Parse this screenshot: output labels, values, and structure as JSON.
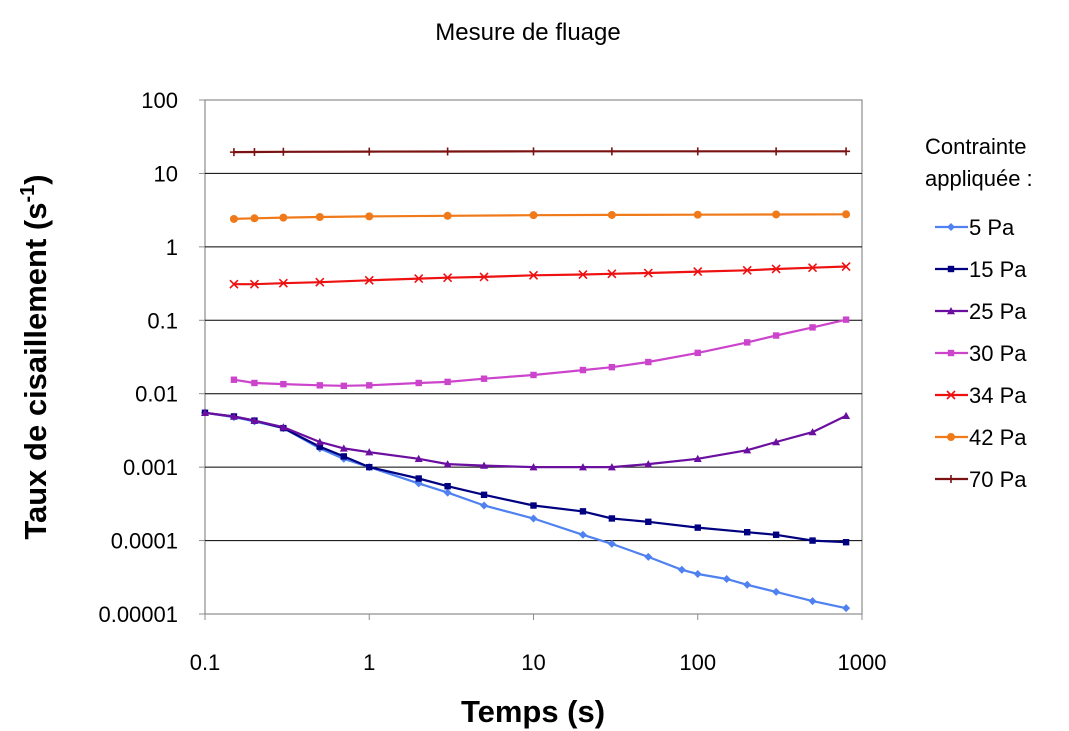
{
  "chart_data": {
    "type": "line",
    "title": "Mesure de fluage",
    "xlabel": "Temps (s)",
    "ylabel_main": "Taux de cisaillement (s",
    "ylabel_sup": "-1",
    "ylabel_close": ")",
    "xscale": "log",
    "yscale": "log",
    "xlim": [
      0.1,
      1000
    ],
    "ylim": [
      1e-05,
      100
    ],
    "x_ticks": [
      0.1,
      1,
      10,
      100,
      1000
    ],
    "x_tick_labels": [
      "0.1",
      "1",
      "10",
      "100",
      "1000"
    ],
    "y_ticks": [
      1e-05,
      0.0001,
      0.001,
      0.01,
      0.1,
      1,
      10,
      100
    ],
    "y_tick_labels": [
      "0.00001",
      "0.0001",
      "0.001",
      "0.01",
      "0.1",
      "1",
      "10",
      "100"
    ],
    "grid": "horizontal",
    "legend_position": "right",
    "legend_title_lines": [
      "Contrainte",
      "appliquée :"
    ],
    "series": [
      {
        "name": "5 Pa",
        "color": "#4f81f0",
        "marker": "diamond",
        "points": [
          [
            0.1,
            0.0055
          ],
          [
            0.15,
            0.0048
          ],
          [
            0.2,
            0.0042
          ],
          [
            0.3,
            0.0034
          ],
          [
            0.5,
            0.0018
          ],
          [
            0.7,
            0.0013
          ],
          [
            1,
            0.001
          ],
          [
            2,
            0.0006
          ],
          [
            3,
            0.00045
          ],
          [
            5,
            0.0003
          ],
          [
            10,
            0.0002
          ],
          [
            20,
            0.00012
          ],
          [
            30,
            9e-05
          ],
          [
            50,
            6e-05
          ],
          [
            80,
            4e-05
          ],
          [
            100,
            3.5e-05
          ],
          [
            150,
            3e-05
          ],
          [
            200,
            2.5e-05
          ],
          [
            300,
            2e-05
          ],
          [
            500,
            1.5e-05
          ],
          [
            800,
            1.2e-05
          ]
        ]
      },
      {
        "name": "15 Pa",
        "color": "#000080",
        "marker": "square",
        "points": [
          [
            0.1,
            0.0055
          ],
          [
            0.15,
            0.0049
          ],
          [
            0.2,
            0.0043
          ],
          [
            0.3,
            0.0034
          ],
          [
            0.5,
            0.0019
          ],
          [
            0.7,
            0.0014
          ],
          [
            1,
            0.001
          ],
          [
            2,
            0.0007
          ],
          [
            3,
            0.00055
          ],
          [
            5,
            0.00042
          ],
          [
            10,
            0.0003
          ],
          [
            20,
            0.00025
          ],
          [
            30,
            0.0002
          ],
          [
            50,
            0.00018
          ],
          [
            100,
            0.00015
          ],
          [
            200,
            0.00013
          ],
          [
            300,
            0.00012
          ],
          [
            500,
            0.0001
          ],
          [
            800,
            9.5e-05
          ]
        ]
      },
      {
        "name": "25 Pa",
        "color": "#6b0fa0",
        "marker": "triangle",
        "points": [
          [
            0.1,
            0.0055
          ],
          [
            0.15,
            0.0049
          ],
          [
            0.2,
            0.0043
          ],
          [
            0.3,
            0.0035
          ],
          [
            0.5,
            0.0022
          ],
          [
            0.7,
            0.0018
          ],
          [
            1,
            0.0016
          ],
          [
            2,
            0.0013
          ],
          [
            3,
            0.0011
          ],
          [
            5,
            0.00105
          ],
          [
            10,
            0.001
          ],
          [
            20,
            0.001
          ],
          [
            30,
            0.001
          ],
          [
            50,
            0.0011
          ],
          [
            100,
            0.0013
          ],
          [
            200,
            0.0017
          ],
          [
            300,
            0.0022
          ],
          [
            500,
            0.003
          ],
          [
            800,
            0.005
          ]
        ]
      },
      {
        "name": "30 Pa",
        "color": "#cc44cc",
        "marker": "square",
        "points": [
          [
            0.15,
            0.0155
          ],
          [
            0.2,
            0.014
          ],
          [
            0.3,
            0.0135
          ],
          [
            0.5,
            0.013
          ],
          [
            0.7,
            0.0128
          ],
          [
            1,
            0.013
          ],
          [
            2,
            0.014
          ],
          [
            3,
            0.0145
          ],
          [
            5,
            0.016
          ],
          [
            10,
            0.018
          ],
          [
            20,
            0.021
          ],
          [
            30,
            0.023
          ],
          [
            50,
            0.027
          ],
          [
            100,
            0.036
          ],
          [
            200,
            0.05
          ],
          [
            300,
            0.062
          ],
          [
            500,
            0.08
          ],
          [
            800,
            0.102
          ]
        ]
      },
      {
        "name": "34 Pa",
        "color": "#ee1111",
        "marker": "x",
        "points": [
          [
            0.15,
            0.31
          ],
          [
            0.2,
            0.31
          ],
          [
            0.3,
            0.32
          ],
          [
            0.5,
            0.33
          ],
          [
            1,
            0.35
          ],
          [
            2,
            0.37
          ],
          [
            3,
            0.38
          ],
          [
            5,
            0.39
          ],
          [
            10,
            0.41
          ],
          [
            20,
            0.42
          ],
          [
            30,
            0.43
          ],
          [
            50,
            0.44
          ],
          [
            100,
            0.46
          ],
          [
            200,
            0.48
          ],
          [
            300,
            0.5
          ],
          [
            500,
            0.52
          ],
          [
            800,
            0.54
          ]
        ]
      },
      {
        "name": "42 Pa",
        "color": "#f07a1a",
        "marker": "circle",
        "points": [
          [
            0.15,
            2.4
          ],
          [
            0.2,
            2.45
          ],
          [
            0.3,
            2.5
          ],
          [
            0.5,
            2.55
          ],
          [
            1,
            2.6
          ],
          [
            3,
            2.65
          ],
          [
            10,
            2.7
          ],
          [
            30,
            2.72
          ],
          [
            100,
            2.74
          ],
          [
            300,
            2.76
          ],
          [
            800,
            2.78
          ]
        ]
      },
      {
        "name": "70 Pa",
        "color": "#7a1212",
        "marker": "plus",
        "points": [
          [
            0.15,
            19.5
          ],
          [
            0.2,
            19.6
          ],
          [
            0.3,
            19.7
          ],
          [
            1,
            19.8
          ],
          [
            3,
            19.9
          ],
          [
            10,
            20
          ],
          [
            30,
            20
          ],
          [
            100,
            20
          ],
          [
            300,
            20
          ],
          [
            800,
            20
          ]
        ]
      }
    ]
  }
}
